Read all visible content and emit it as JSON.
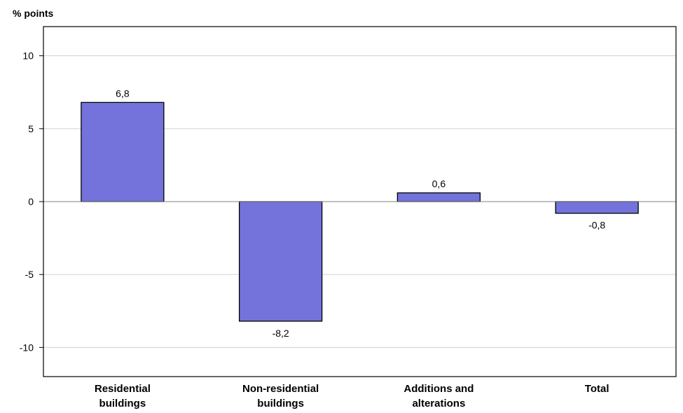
{
  "chart_data": {
    "type": "bar",
    "ylabel": "% points",
    "xlabel": "",
    "categories": [
      [
        "Residential",
        "buildings"
      ],
      [
        "Non-residential",
        "buildings"
      ],
      [
        "Additions and",
        "alterations"
      ],
      [
        "Total"
      ]
    ],
    "values": [
      6.8,
      -8.2,
      0.6,
      -0.8
    ],
    "value_labels": [
      "6,8",
      "-8,2",
      "0,6",
      "-0,8"
    ],
    "ylim": [
      -12,
      12
    ],
    "yticks": [
      10,
      5,
      0,
      -5,
      -10
    ],
    "grid": true,
    "legend": "none",
    "colors": {
      "bar": "#7373db",
      "grid": "#d0d0d0",
      "zero_line": "#808080",
      "frame": "#000000"
    }
  }
}
